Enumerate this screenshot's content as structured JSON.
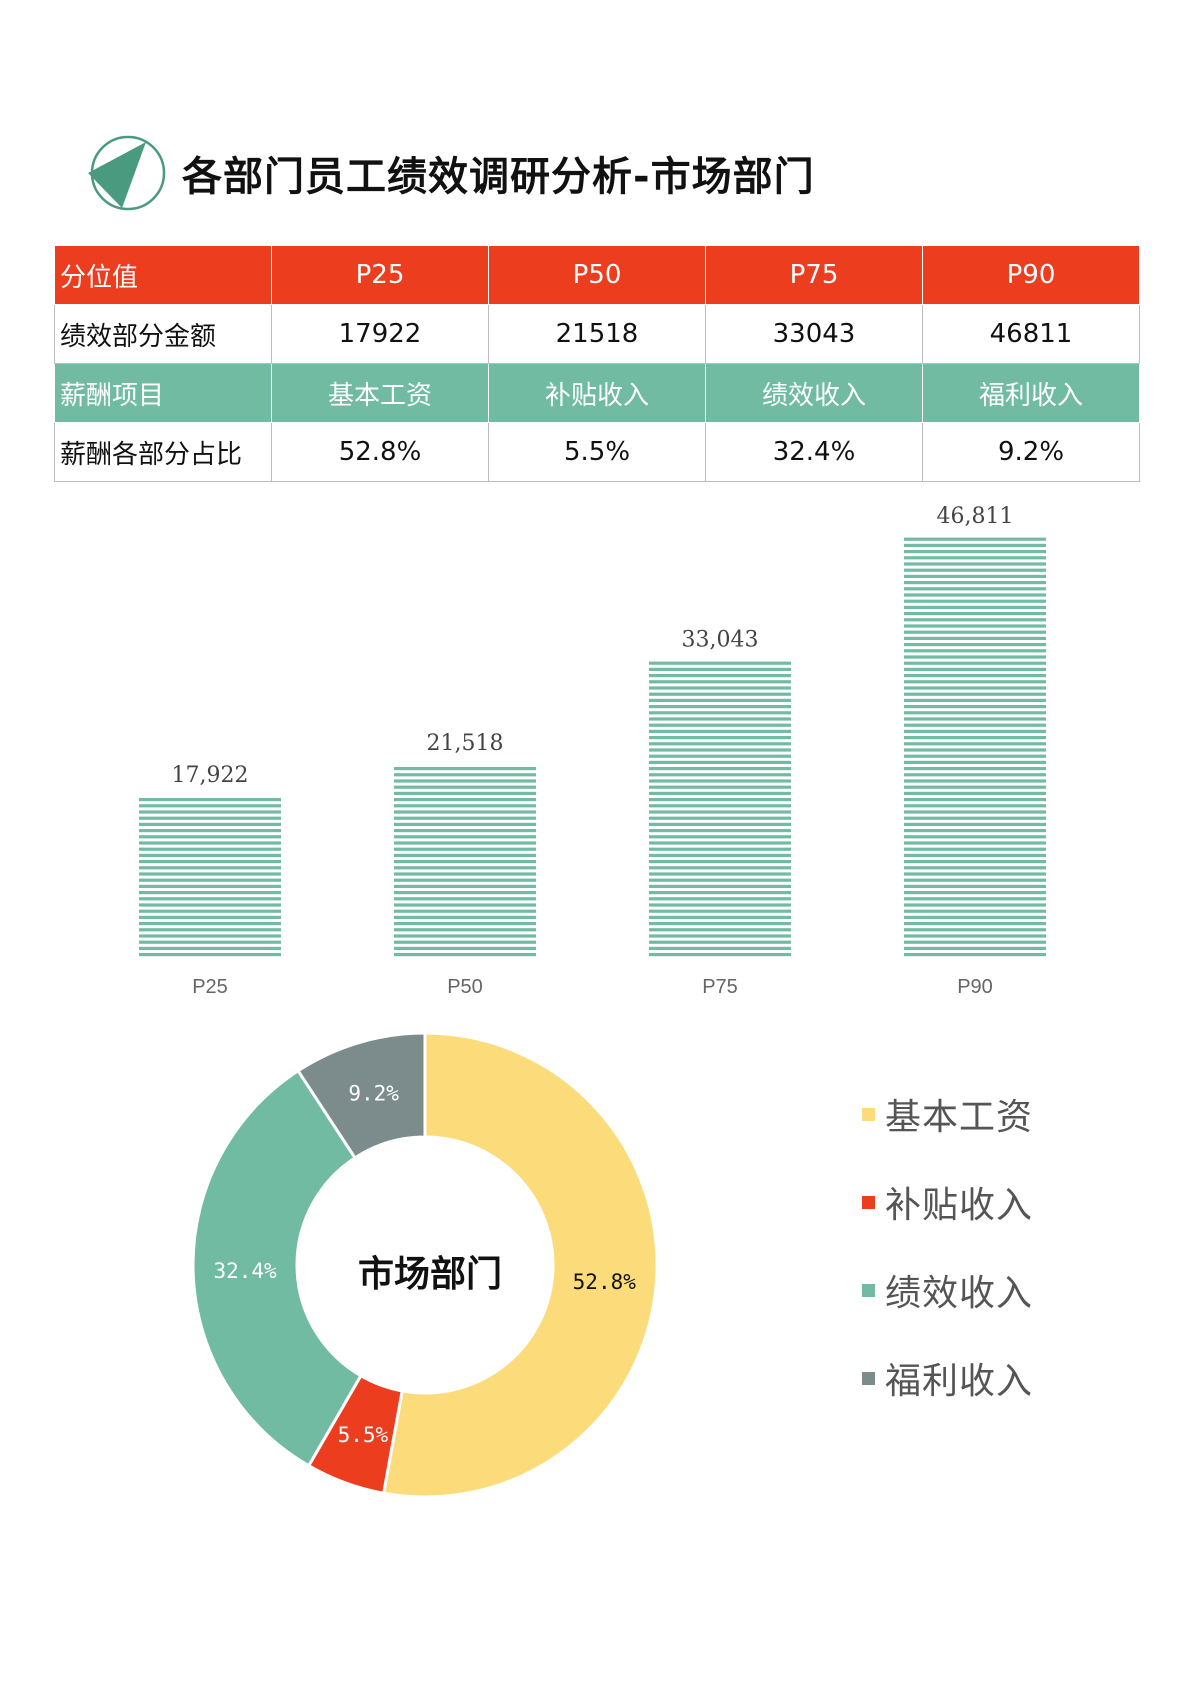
{
  "page": {
    "title": "各部门员工绩效调研分析-市场部门"
  },
  "table": {
    "row1": [
      "分位值",
      "P25",
      "P50",
      "P75",
      "P90"
    ],
    "row2": [
      "绩效部分金额",
      "17922",
      "21518",
      "33043",
      "46811"
    ],
    "row3": [
      "薪酬项目",
      "基本工资",
      "补贴收入",
      "绩效收入",
      "福利收入"
    ],
    "row4": [
      "薪酬各部分占比",
      "52.8%",
      "5.5%",
      "32.4%",
      "9.2%"
    ]
  },
  "colors": {
    "red": "#ed3d1f",
    "green": "#71bba3",
    "yellow": "#fcdb7b",
    "gray": "#7c8c8c",
    "dark_green": "#4a9a80"
  },
  "chart_data": [
    {
      "type": "bar",
      "categories": [
        "P25",
        "P50",
        "P75",
        "P90"
      ],
      "values": [
        17922,
        21518,
        33043,
        46811
      ],
      "data_labels": [
        "17,922",
        "21,518",
        "33,043",
        "46,811"
      ],
      "fill": "horizontal-stripes",
      "color": "#71bba3",
      "ylim": [
        0,
        46811
      ],
      "grid": false
    },
    {
      "type": "pie",
      "style": "donut",
      "center_label": "市场部门",
      "categories": [
        "基本工资",
        "补贴收入",
        "绩效收入",
        "福利收入"
      ],
      "values": [
        52.8,
        5.5,
        32.4,
        9.2
      ],
      "data_labels": [
        "52.8%",
        "5.5%",
        "32.4%",
        "9.2%"
      ],
      "colors": [
        "#fcdb7b",
        "#ed3d1f",
        "#71bba3",
        "#7c8c8c"
      ],
      "legend_position": "right"
    }
  ]
}
